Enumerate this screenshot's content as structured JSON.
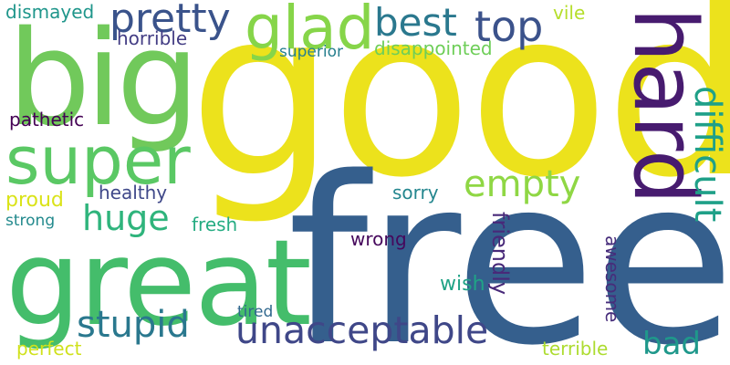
{
  "words": [
    {
      "text": "good",
      "color": "#ece21c"
    },
    {
      "text": "free",
      "color": "#355f8d"
    },
    {
      "text": "big",
      "color": "#71c95b"
    },
    {
      "text": "great",
      "color": "#44bd6b"
    },
    {
      "text": "hard",
      "color": "#471b6f"
    },
    {
      "text": "super",
      "color": "#5ac864"
    },
    {
      "text": "glad",
      "color": "#86d549"
    },
    {
      "text": "pretty",
      "color": "#3a538b"
    },
    {
      "text": "best",
      "color": "#2a788e"
    },
    {
      "text": "top",
      "color": "#3b528b"
    },
    {
      "text": "difficult",
      "color": "#1fa088"
    },
    {
      "text": "empty",
      "color": "#8fd744"
    },
    {
      "text": "huge",
      "color": "#2fb47c"
    },
    {
      "text": "stupid",
      "color": "#2a788e"
    },
    {
      "text": "unacceptable",
      "color": "#3f4788"
    },
    {
      "text": "bad",
      "color": "#1f988b"
    },
    {
      "text": "dismayed",
      "color": "#1f968b"
    },
    {
      "text": "horrible",
      "color": "#433d84"
    },
    {
      "text": "vile",
      "color": "#b5de2b"
    },
    {
      "text": "superior",
      "color": "#277f8e"
    },
    {
      "text": "disappointed",
      "color": "#6ece58"
    },
    {
      "text": "pathetic",
      "color": "#440154"
    },
    {
      "text": "healthy",
      "color": "#3f4889"
    },
    {
      "text": "proud",
      "color": "#dae319"
    },
    {
      "text": "strong",
      "color": "#238a8d"
    },
    {
      "text": "fresh",
      "color": "#25ac82"
    },
    {
      "text": "sorry",
      "color": "#24868e"
    },
    {
      "text": "wrong",
      "color": "#46085c"
    },
    {
      "text": "friendly",
      "color": "#482979"
    },
    {
      "text": "awesome",
      "color": "#472d7b"
    },
    {
      "text": "wish",
      "color": "#20a386"
    },
    {
      "text": "tired",
      "color": "#31688e"
    },
    {
      "text": "perfect",
      "color": "#d0e11c"
    },
    {
      "text": "terrible",
      "color": "#addc30"
    }
  ]
}
